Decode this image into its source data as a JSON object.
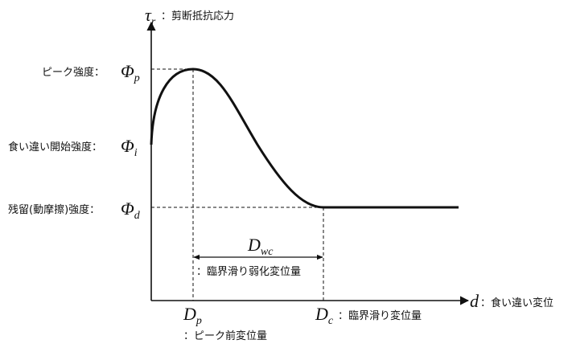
{
  "axes": {
    "y_symbol": "τ",
    "y_subscript": "r",
    "y_label": "：剪断抵抗応力",
    "x_symbol": "d",
    "x_label": "：食い違い変位"
  },
  "levels": {
    "peak_label": "ピーク強度：",
    "peak_symbol": "Φ",
    "peak_sub": "p",
    "initial_label": "食い違い開始強度：",
    "initial_symbol": "Φ",
    "initial_sub": "i",
    "residual_label": "残留(動摩擦)強度：",
    "residual_symbol": "Φ",
    "residual_sub": "d"
  },
  "displacements": {
    "dp_symbol": "D",
    "dp_sub": "p",
    "dp_label": "：ピーク前変位量",
    "dc_symbol": "D",
    "dc_sub": "c",
    "dc_label": "：臨界滑り変位量",
    "dwc_symbol": "D",
    "dwc_sub": "wc",
    "dwc_label": "：臨界滑り弱化変位量"
  },
  "colors": {
    "line": "#111111",
    "background": "#ffffff"
  }
}
